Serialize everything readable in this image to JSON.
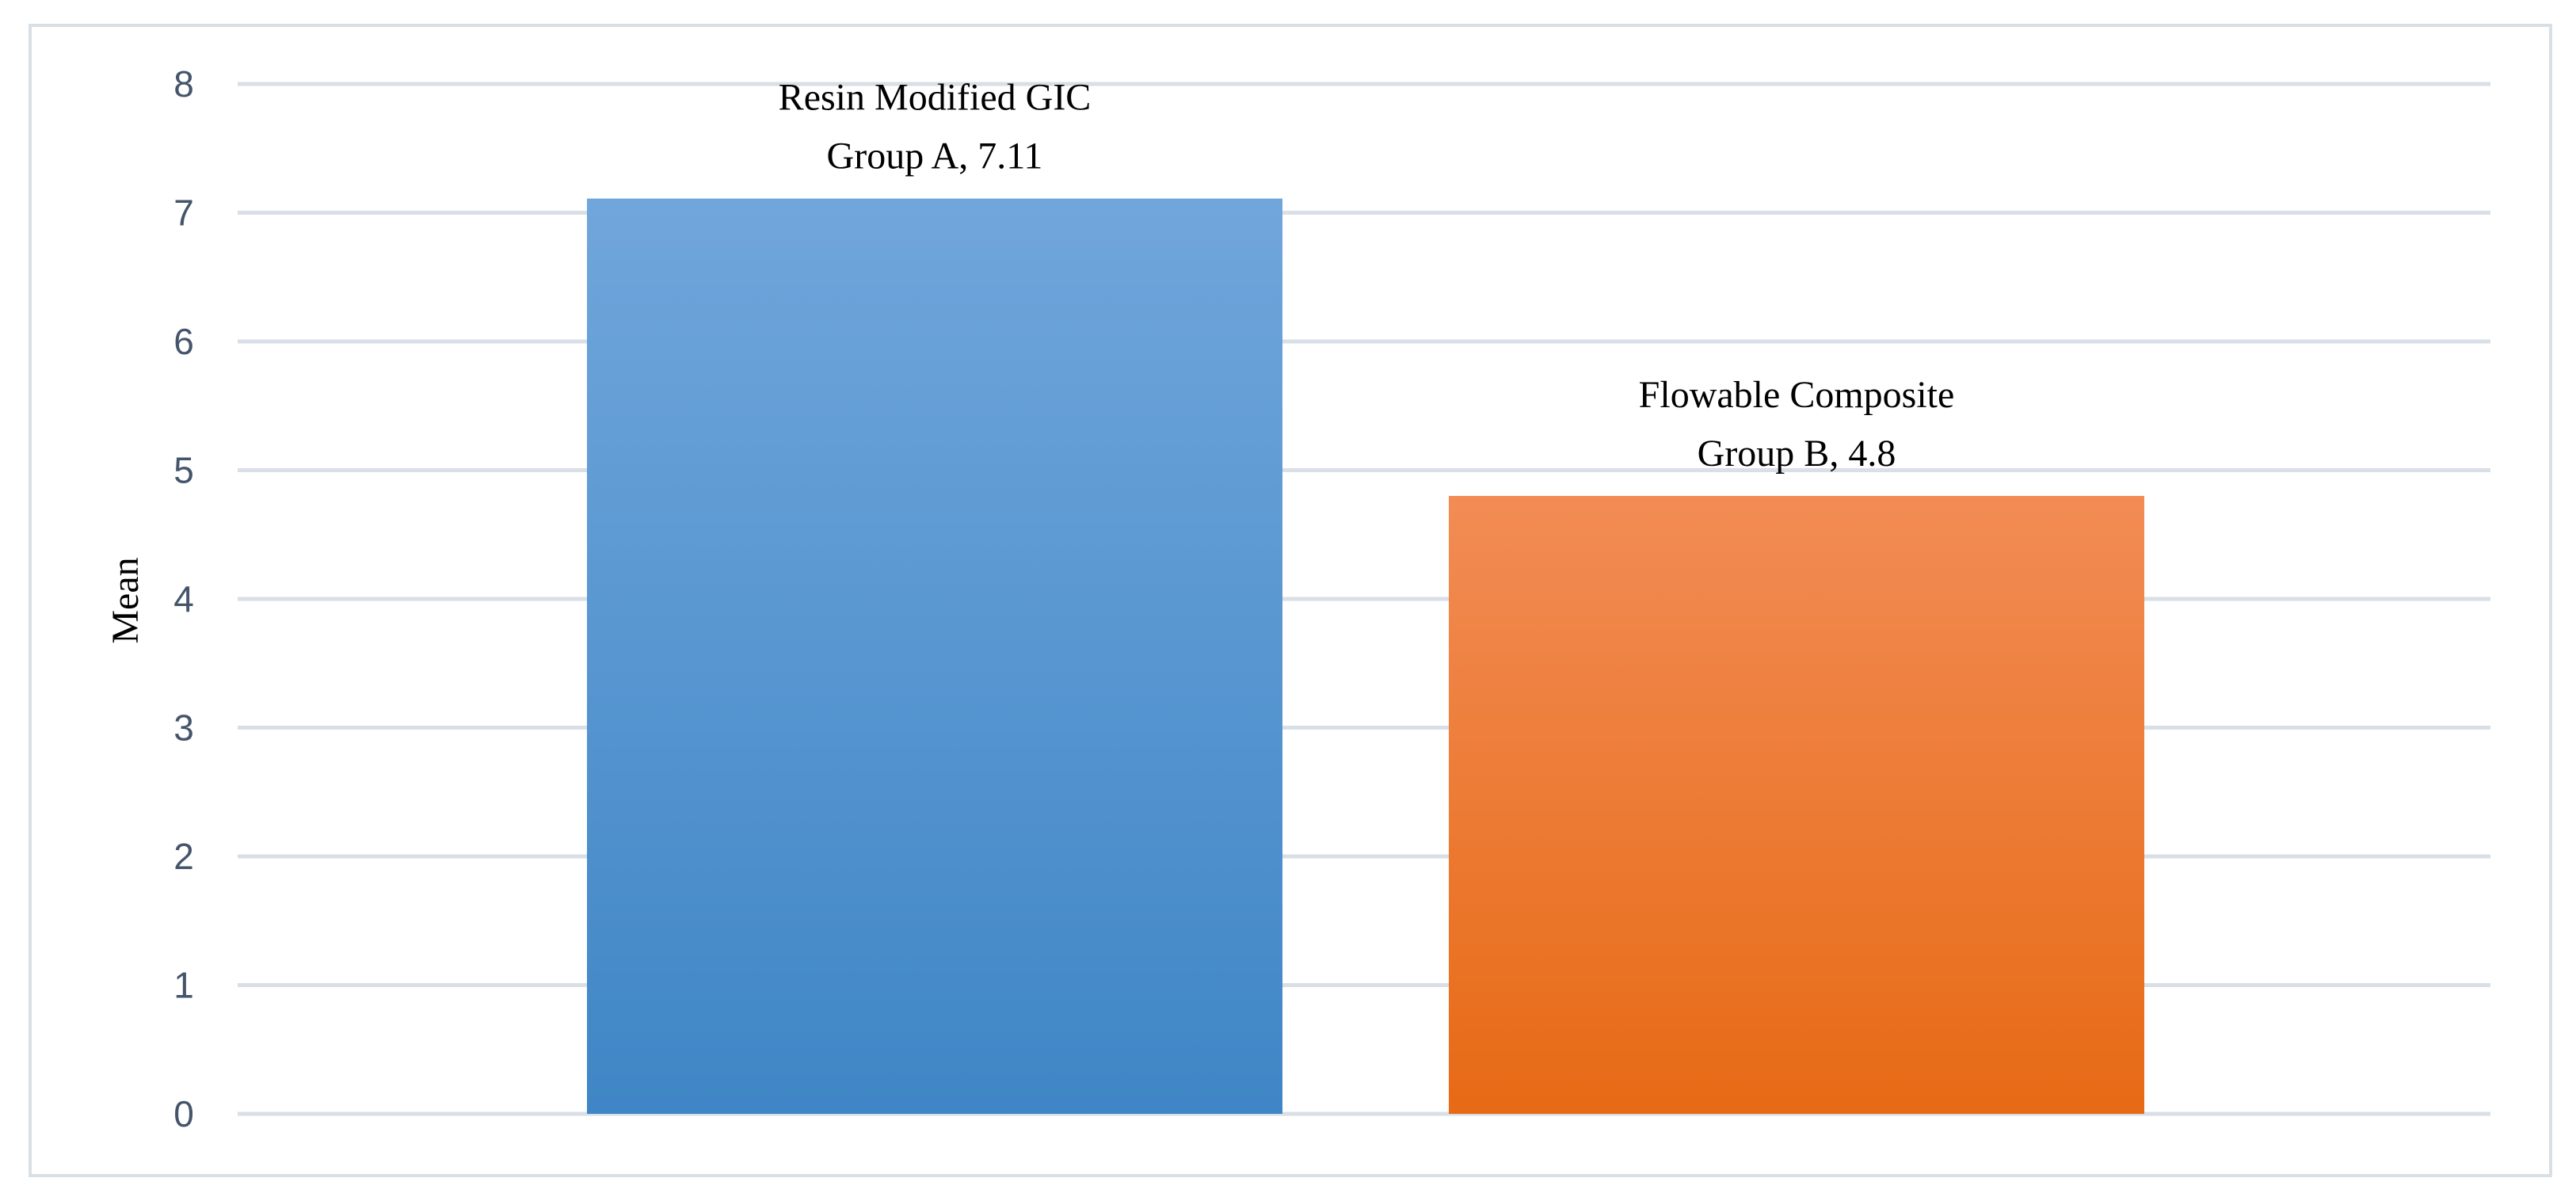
{
  "chart_data": {
    "type": "bar",
    "categories": [
      "Group A",
      "Group B"
    ],
    "values": [
      7.11,
      4.8
    ],
    "bar_names": [
      "Resin Modified GIC",
      "Flowable Composite"
    ],
    "data_labels": [
      [
        "Resin Modified GIC",
        "Group A, 7.11"
      ],
      [
        "Flowable Composite",
        "Group B, 4.8"
      ]
    ],
    "title": "",
    "xlabel": "",
    "ylabel": "Mean",
    "ylim": [
      0,
      8
    ],
    "yticks": [
      0,
      1,
      2,
      3,
      4,
      5,
      6,
      7,
      8
    ],
    "grid": true,
    "colors": {
      "bar_a_top": "#70a6db",
      "bar_a_bottom": "#3f86c6",
      "bar_b_top": "#f28c55",
      "bar_b_bottom": "#e76a15",
      "grid": "#d9dfe6",
      "tick_text": "#44546a"
    }
  }
}
